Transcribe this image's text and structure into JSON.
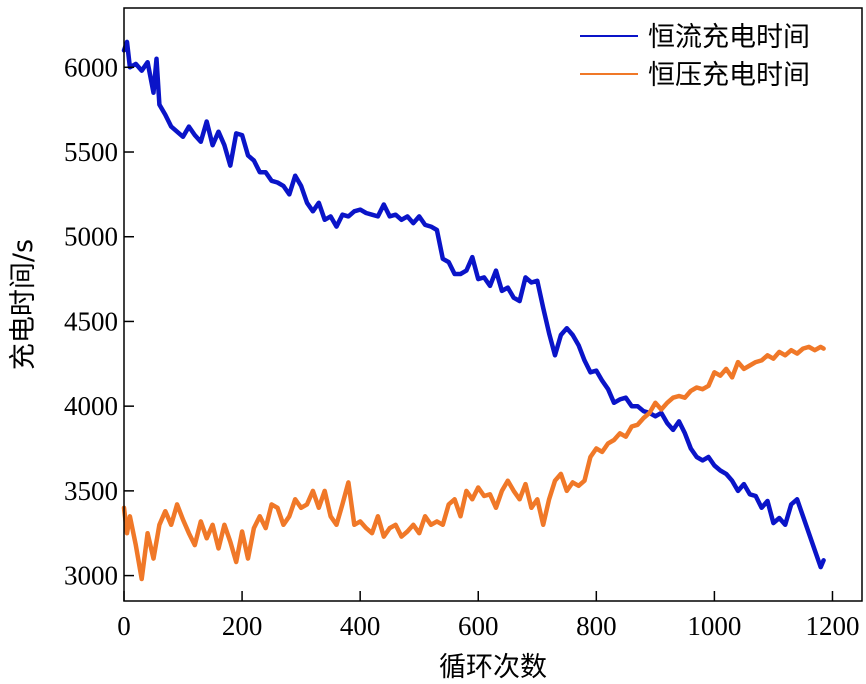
{
  "chart_data": {
    "type": "line",
    "xlabel": "循环次数",
    "ylabel": "充电时间/s",
    "xlim": [
      0,
      1250
    ],
    "ylim": [
      2850,
      6350
    ],
    "xticks": [
      0,
      200,
      400,
      600,
      800,
      1000,
      1200
    ],
    "yticks": [
      3000,
      3500,
      4000,
      4500,
      5000,
      5500,
      6000
    ],
    "grid": false,
    "legend_position": "top-right",
    "series": [
      {
        "name": "恒流充电时间",
        "color": "#0a14c8",
        "x": [
          0,
          5,
          10,
          20,
          30,
          40,
          50,
          55,
          60,
          70,
          80,
          90,
          100,
          110,
          120,
          130,
          140,
          150,
          160,
          170,
          180,
          190,
          200,
          210,
          220,
          230,
          240,
          250,
          260,
          270,
          280,
          290,
          300,
          310,
          320,
          330,
          340,
          350,
          360,
          370,
          380,
          390,
          400,
          410,
          420,
          430,
          440,
          450,
          460,
          470,
          480,
          490,
          500,
          510,
          520,
          530,
          540,
          550,
          560,
          570,
          580,
          590,
          600,
          610,
          620,
          630,
          640,
          650,
          660,
          670,
          680,
          690,
          700,
          710,
          720,
          730,
          740,
          750,
          760,
          770,
          780,
          790,
          800,
          810,
          820,
          830,
          840,
          850,
          860,
          870,
          880,
          890,
          900,
          910,
          920,
          930,
          940,
          950,
          960,
          970,
          980,
          990,
          1000,
          1010,
          1020,
          1030,
          1040,
          1050,
          1060,
          1070,
          1080,
          1090,
          1100,
          1110,
          1120,
          1130,
          1140,
          1150,
          1160,
          1170,
          1180,
          1185
        ],
        "y": [
          6100,
          6150,
          6000,
          6020,
          5980,
          6030,
          5850,
          6050,
          5780,
          5720,
          5650,
          5620,
          5590,
          5650,
          5600,
          5560,
          5680,
          5540,
          5620,
          5540,
          5420,
          5610,
          5600,
          5480,
          5450,
          5380,
          5380,
          5330,
          5320,
          5300,
          5250,
          5360,
          5300,
          5200,
          5150,
          5200,
          5100,
          5120,
          5060,
          5130,
          5120,
          5150,
          5160,
          5140,
          5130,
          5120,
          5190,
          5120,
          5130,
          5100,
          5120,
          5080,
          5120,
          5070,
          5060,
          5040,
          4870,
          4850,
          4780,
          4780,
          4800,
          4880,
          4750,
          4760,
          4710,
          4800,
          4680,
          4700,
          4640,
          4620,
          4760,
          4730,
          4740,
          4580,
          4430,
          4300,
          4420,
          4460,
          4420,
          4360,
          4270,
          4200,
          4210,
          4150,
          4100,
          4020,
          4040,
          4050,
          4000,
          4000,
          3970,
          3960,
          3940,
          3960,
          3900,
          3860,
          3910,
          3840,
          3750,
          3700,
          3680,
          3700,
          3650,
          3620,
          3600,
          3560,
          3500,
          3540,
          3480,
          3470,
          3400,
          3440,
          3310,
          3340,
          3300,
          3420,
          3450,
          3350,
          3250,
          3150,
          3050,
          3090
        ]
      },
      {
        "name": "恒压充电时间",
        "color": "#f07828",
        "x": [
          0,
          5,
          10,
          20,
          30,
          40,
          50,
          60,
          70,
          80,
          90,
          100,
          110,
          120,
          130,
          140,
          150,
          160,
          170,
          180,
          190,
          200,
          210,
          220,
          230,
          240,
          250,
          260,
          270,
          280,
          290,
          300,
          310,
          320,
          330,
          340,
          350,
          360,
          370,
          380,
          390,
          400,
          410,
          420,
          430,
          440,
          450,
          460,
          470,
          480,
          490,
          500,
          510,
          520,
          530,
          540,
          550,
          560,
          570,
          580,
          590,
          600,
          610,
          620,
          630,
          640,
          650,
          660,
          670,
          680,
          690,
          700,
          710,
          720,
          730,
          740,
          750,
          760,
          770,
          780,
          790,
          800,
          810,
          820,
          830,
          840,
          850,
          860,
          870,
          880,
          890,
          900,
          910,
          920,
          930,
          940,
          950,
          960,
          970,
          980,
          990,
          1000,
          1010,
          1020,
          1030,
          1040,
          1050,
          1060,
          1070,
          1080,
          1090,
          1100,
          1110,
          1120,
          1130,
          1140,
          1150,
          1160,
          1170,
          1180,
          1185
        ],
        "y": [
          3400,
          3250,
          3350,
          3180,
          2980,
          3250,
          3100,
          3300,
          3380,
          3300,
          3420,
          3330,
          3250,
          3180,
          3320,
          3220,
          3300,
          3160,
          3300,
          3200,
          3080,
          3260,
          3100,
          3280,
          3350,
          3280,
          3420,
          3400,
          3300,
          3350,
          3450,
          3400,
          3420,
          3500,
          3400,
          3500,
          3350,
          3300,
          3420,
          3550,
          3300,
          3320,
          3280,
          3250,
          3350,
          3230,
          3280,
          3300,
          3230,
          3260,
          3300,
          3250,
          3350,
          3300,
          3320,
          3300,
          3420,
          3450,
          3350,
          3500,
          3450,
          3520,
          3470,
          3480,
          3400,
          3500,
          3560,
          3500,
          3450,
          3540,
          3400,
          3450,
          3300,
          3450,
          3560,
          3600,
          3500,
          3550,
          3530,
          3560,
          3700,
          3750,
          3730,
          3780,
          3800,
          3840,
          3820,
          3880,
          3890,
          3930,
          3960,
          4020,
          3980,
          4020,
          4050,
          4060,
          4050,
          4090,
          4110,
          4100,
          4120,
          4200,
          4180,
          4220,
          4170,
          4260,
          4220,
          4240,
          4260,
          4270,
          4300,
          4280,
          4320,
          4300,
          4330,
          4310,
          4340,
          4350,
          4330,
          4350,
          4340
        ]
      }
    ]
  }
}
